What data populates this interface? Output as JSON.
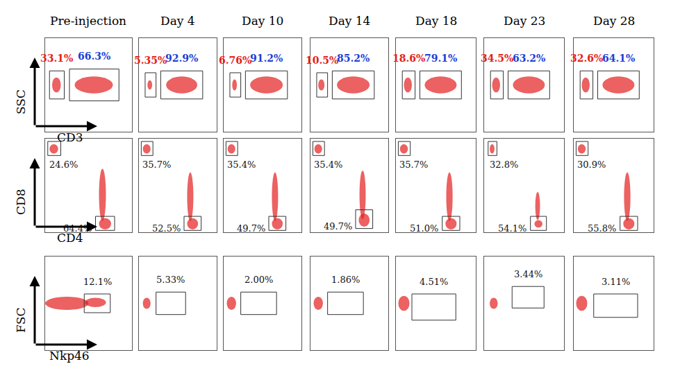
{
  "chart_data": {
    "type": "scatter",
    "xlim": [
      0,
      100
    ],
    "ylim": [
      0,
      100
    ],
    "tick_labels": false,
    "columns": [
      "Pre-injection",
      "Day 4",
      "Day 10",
      "Day 14",
      "Day 18",
      "Day 23",
      "Day 28"
    ],
    "rows": [
      {
        "y_label": "SSC",
        "x_label": "CD3",
        "panels": [
          {
            "gates": [
              {
                "x0": 5,
                "x1": 22,
                "y0": 35,
                "y1": 65,
                "label": "33.1%",
                "color": "#e32119"
              },
              {
                "x0": 28,
                "x1": 85,
                "y0": 33,
                "y1": 67,
                "label": "66.3%",
                "color": "#1a3fd6"
              }
            ],
            "clouds": [
              {
                "cx": 13,
                "cy": 50,
                "rx": 5,
                "ry": 8
              },
              {
                "cx": 56,
                "cy": 50,
                "rx": 22,
                "ry": 9
              }
            ]
          },
          {
            "gates": [
              {
                "x0": 8,
                "x1": 22,
                "y0": 37,
                "y1": 63,
                "label": "5.35%",
                "color": "#e32119"
              },
              {
                "x0": 28,
                "x1": 82,
                "y0": 35,
                "y1": 65,
                "label": "92.9%",
                "color": "#1a3fd6"
              }
            ],
            "clouds": [
              {
                "cx": 14,
                "cy": 50,
                "rx": 3,
                "ry": 5
              },
              {
                "cx": 55,
                "cy": 50,
                "rx": 20,
                "ry": 9
              }
            ]
          },
          {
            "gates": [
              {
                "x0": 8,
                "x1": 22,
                "y0": 37,
                "y1": 63,
                "label": "6.76%",
                "color": "#e32119"
              },
              {
                "x0": 28,
                "x1": 82,
                "y0": 35,
                "y1": 65,
                "label": "91.2%",
                "color": "#1a3fd6"
              }
            ],
            "clouds": [
              {
                "cx": 14,
                "cy": 50,
                "rx": 3,
                "ry": 6
              },
              {
                "cx": 55,
                "cy": 50,
                "rx": 21,
                "ry": 9
              }
            ]
          },
          {
            "gates": [
              {
                "x0": 8,
                "x1": 22,
                "y0": 37,
                "y1": 63,
                "label": "10.5%",
                "color": "#e32119"
              },
              {
                "x0": 28,
                "x1": 82,
                "y0": 35,
                "y1": 65,
                "label": "85.2%",
                "color": "#1a3fd6"
              }
            ],
            "clouds": [
              {
                "cx": 14,
                "cy": 50,
                "rx": 4,
                "ry": 6
              },
              {
                "cx": 55,
                "cy": 50,
                "rx": 21,
                "ry": 9
              }
            ]
          },
          {
            "gates": [
              {
                "x0": 8,
                "x1": 24,
                "y0": 35,
                "y1": 65,
                "label": "18.6%",
                "color": "#e32119"
              },
              {
                "x0": 30,
                "x1": 82,
                "y0": 35,
                "y1": 65,
                "label": "79.1%",
                "color": "#1a3fd6"
              }
            ],
            "clouds": [
              {
                "cx": 15,
                "cy": 50,
                "rx": 5,
                "ry": 8
              },
              {
                "cx": 56,
                "cy": 50,
                "rx": 20,
                "ry": 9
              }
            ]
          },
          {
            "gates": [
              {
                "x0": 8,
                "x1": 24,
                "y0": 35,
                "y1": 65,
                "label": "34.5%",
                "color": "#e32119"
              },
              {
                "x0": 30,
                "x1": 82,
                "y0": 35,
                "y1": 65,
                "label": "63.2%",
                "color": "#1a3fd6"
              }
            ],
            "clouds": [
              {
                "cx": 15,
                "cy": 50,
                "rx": 5,
                "ry": 8
              },
              {
                "cx": 56,
                "cy": 50,
                "rx": 20,
                "ry": 9
              }
            ]
          },
          {
            "gates": [
              {
                "x0": 8,
                "x1": 24,
                "y0": 35,
                "y1": 65,
                "label": "32.6%",
                "color": "#e32119"
              },
              {
                "x0": 30,
                "x1": 82,
                "y0": 35,
                "y1": 65,
                "label": "64.1%",
                "color": "#1a3fd6"
              }
            ],
            "clouds": [
              {
                "cx": 15,
                "cy": 50,
                "rx": 5,
                "ry": 8
              },
              {
                "cx": 56,
                "cy": 50,
                "rx": 20,
                "ry": 9
              }
            ]
          }
        ]
      },
      {
        "y_label": "CD8",
        "x_label": "CD4",
        "panels": [
          {
            "gates": [
              {
                "x0": 3,
                "x1": 18,
                "y0": 82,
                "y1": 97,
                "label": "24.6%"
              },
              {
                "x0": 58,
                "x1": 80,
                "y0": 2,
                "y1": 17,
                "label": "64.4%"
              }
            ],
            "clouds": [
              {
                "cx": 10,
                "cy": 89,
                "rx": 5,
                "ry": 5
              },
              {
                "cx": 66,
                "cy": 40,
                "rx": 4,
                "ry": 28
              },
              {
                "cx": 69,
                "cy": 9,
                "rx": 7,
                "ry": 6
              }
            ]
          },
          {
            "gates": [
              {
                "x0": 3,
                "x1": 18,
                "y0": 82,
                "y1": 97,
                "label": "35.7%"
              },
              {
                "x0": 58,
                "x1": 80,
                "y0": 2,
                "y1": 17,
                "label": "52.5%"
              }
            ],
            "clouds": [
              {
                "cx": 10,
                "cy": 89,
                "rx": 5,
                "ry": 5
              },
              {
                "cx": 66,
                "cy": 38,
                "rx": 4,
                "ry": 26
              },
              {
                "cx": 69,
                "cy": 9,
                "rx": 7,
                "ry": 6
              }
            ]
          },
          {
            "gates": [
              {
                "x0": 3,
                "x1": 18,
                "y0": 82,
                "y1": 97,
                "label": "35.4%"
              },
              {
                "x0": 58,
                "x1": 80,
                "y0": 2,
                "y1": 17,
                "label": "49.7%"
              }
            ],
            "clouds": [
              {
                "cx": 10,
                "cy": 89,
                "rx": 5,
                "ry": 5
              },
              {
                "cx": 66,
                "cy": 38,
                "rx": 4,
                "ry": 26
              },
              {
                "cx": 69,
                "cy": 9,
                "rx": 7,
                "ry": 6
              }
            ]
          },
          {
            "gates": [
              {
                "x0": 3,
                "x1": 18,
                "y0": 82,
                "y1": 97,
                "label": "35.4%"
              },
              {
                "x0": 58,
                "x1": 80,
                "y0": 4,
                "y1": 24,
                "label": "49.7%"
              }
            ],
            "clouds": [
              {
                "cx": 10,
                "cy": 89,
                "rx": 5,
                "ry": 5
              },
              {
                "cx": 67,
                "cy": 40,
                "rx": 4,
                "ry": 26
              },
              {
                "cx": 69,
                "cy": 13,
                "rx": 7,
                "ry": 7
              }
            ]
          },
          {
            "gates": [
              {
                "x0": 3,
                "x1": 18,
                "y0": 82,
                "y1": 97,
                "label": "35.7%"
              },
              {
                "x0": 58,
                "x1": 80,
                "y0": 2,
                "y1": 17,
                "label": "51.0%"
              }
            ],
            "clouds": [
              {
                "cx": 10,
                "cy": 89,
                "rx": 5,
                "ry": 5
              },
              {
                "cx": 67,
                "cy": 38,
                "rx": 4,
                "ry": 26
              },
              {
                "cx": 69,
                "cy": 9,
                "rx": 7,
                "ry": 6
              }
            ]
          },
          {
            "gates": [
              {
                "x0": 5,
                "x1": 16,
                "y0": 82,
                "y1": 97,
                "label": "32.8%"
              },
              {
                "x0": 58,
                "x1": 78,
                "y0": 2,
                "y1": 17,
                "label": "54.1%"
              }
            ],
            "clouds": [
              {
                "cx": 10,
                "cy": 89,
                "rx": 3,
                "ry": 5
              },
              {
                "cx": 67,
                "cy": 28,
                "rx": 3,
                "ry": 15
              },
              {
                "cx": 68,
                "cy": 9,
                "rx": 5,
                "ry": 4
              }
            ]
          },
          {
            "gates": [
              {
                "x0": 3,
                "x1": 18,
                "y0": 82,
                "y1": 97,
                "label": "30.9%"
              },
              {
                "x0": 58,
                "x1": 80,
                "y0": 2,
                "y1": 17,
                "label": "55.8%"
              }
            ],
            "clouds": [
              {
                "cx": 10,
                "cy": 89,
                "rx": 5,
                "ry": 5
              },
              {
                "cx": 67,
                "cy": 38,
                "rx": 4,
                "ry": 26
              },
              {
                "cx": 69,
                "cy": 9,
                "rx": 7,
                "ry": 6
              }
            ]
          }
        ]
      },
      {
        "y_label": "FSC",
        "x_label": "Nkp46",
        "panels": [
          {
            "gates": [
              {
                "x0": 45,
                "x1": 75,
                "y0": 40,
                "y1": 60,
                "label": "12.1%"
              }
            ],
            "clouds": [
              {
                "cx": 25,
                "cy": 50,
                "rx": 25,
                "ry": 7
              },
              {
                "cx": 58,
                "cy": 51,
                "rx": 12,
                "ry": 5
              }
            ]
          },
          {
            "gates": [
              {
                "x0": 22,
                "x1": 60,
                "y0": 38,
                "y1": 62,
                "label": "5.33%"
              }
            ],
            "clouds": [
              {
                "cx": 10,
                "cy": 50,
                "rx": 5,
                "ry": 6
              }
            ]
          },
          {
            "gates": [
              {
                "x0": 22,
                "x1": 68,
                "y0": 38,
                "y1": 62,
                "label": "2.00%"
              }
            ],
            "clouds": [
              {
                "cx": 10,
                "cy": 50,
                "rx": 6,
                "ry": 7
              }
            ]
          },
          {
            "gates": [
              {
                "x0": 22,
                "x1": 68,
                "y0": 38,
                "y1": 62,
                "label": "1.86%"
              }
            ],
            "clouds": [
              {
                "cx": 10,
                "cy": 50,
                "rx": 6,
                "ry": 7
              }
            ]
          },
          {
            "gates": [
              {
                "x0": 20,
                "x1": 75,
                "y0": 32,
                "y1": 60,
                "label": "4.51%"
              }
            ],
            "clouds": [
              {
                "cx": 10,
                "cy": 50,
                "rx": 7,
                "ry": 8
              }
            ]
          },
          {
            "gates": [
              {
                "x0": 35,
                "x1": 75,
                "y0": 45,
                "y1": 68,
                "label": "3.44%"
              }
            ],
            "clouds": [
              {
                "cx": 12,
                "cy": 50,
                "rx": 5,
                "ry": 6
              }
            ]
          },
          {
            "gates": [
              {
                "x0": 25,
                "x1": 80,
                "y0": 35,
                "y1": 60,
                "label": "3.11%"
              }
            ],
            "clouds": [
              {
                "cx": 10,
                "cy": 50,
                "rx": 7,
                "ry": 8
              }
            ]
          }
        ]
      }
    ]
  }
}
